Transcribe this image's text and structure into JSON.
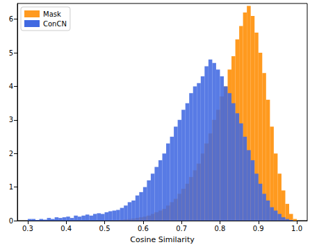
{
  "chart_data": {
    "type": "histogram",
    "xlabel": "Cosine Similarity",
    "xlim": [
      0.273,
      1.027
    ],
    "xticks": [
      0.3,
      0.4,
      0.5,
      0.6,
      0.7,
      0.8,
      0.9,
      {
        "value": 1.0,
        "label": "1.0"
      }
    ],
    "ylim": [
      0,
      6.47
    ],
    "yticks": [
      0,
      1,
      2,
      3,
      4,
      5,
      6
    ],
    "grid": false,
    "legend": "upper left",
    "bins": [
      0.3,
      0.31,
      0.32,
      0.33,
      0.34,
      0.35,
      0.36,
      0.37,
      0.38,
      0.39,
      0.4,
      0.41,
      0.42,
      0.43,
      0.44,
      0.45,
      0.46,
      0.47,
      0.48,
      0.49,
      0.5,
      0.51,
      0.52,
      0.53,
      0.54,
      0.55,
      0.56,
      0.57,
      0.58,
      0.59,
      0.6,
      0.61,
      0.62,
      0.63,
      0.64,
      0.65,
      0.66,
      0.67,
      0.68,
      0.69,
      0.7,
      0.71,
      0.72,
      0.73,
      0.74,
      0.75,
      0.76,
      0.77,
      0.78,
      0.79,
      0.8,
      0.81,
      0.82,
      0.83,
      0.84,
      0.85,
      0.86,
      0.87,
      0.88,
      0.89,
      0.9,
      0.91,
      0.92,
      0.93,
      0.94,
      0.95,
      0.96,
      0.97,
      0.98,
      0.99,
      1.0
    ],
    "series": [
      {
        "name": "Mask",
        "color": "#ff9a1f",
        "values": [
          0,
          0,
          0,
          0,
          0,
          0,
          0,
          0,
          0,
          0,
          0,
          0,
          0,
          0,
          0,
          0,
          0,
          0,
          0,
          0,
          0.01,
          0.01,
          0.02,
          0.02,
          0.03,
          0.04,
          0.05,
          0.06,
          0.08,
          0.1,
          0.12,
          0.15,
          0.2,
          0.25,
          0.3,
          0.35,
          0.45,
          0.55,
          0.65,
          0.8,
          0.95,
          1.1,
          1.3,
          1.5,
          1.7,
          2.0,
          2.3,
          2.6,
          3.0,
          3.3,
          3.7,
          4.0,
          4.5,
          4.9,
          5.4,
          5.8,
          6.2,
          6.4,
          6.1,
          5.6,
          5.0,
          4.4,
          3.6,
          2.8,
          2.0,
          1.4,
          0.9,
          0.5,
          0.2,
          0.05
        ]
      },
      {
        "name": "ConCN",
        "color": "#4169e1",
        "values": [
          0.05,
          0.05,
          0.02,
          0.05,
          0.03,
          0.08,
          0.05,
          0.1,
          0.08,
          0.1,
          0.12,
          0.08,
          0.15,
          0.12,
          0.15,
          0.18,
          0.15,
          0.2,
          0.22,
          0.2,
          0.25,
          0.28,
          0.3,
          0.32,
          0.38,
          0.45,
          0.55,
          0.6,
          0.75,
          0.85,
          1.0,
          1.2,
          1.4,
          1.6,
          1.8,
          2.0,
          2.3,
          2.5,
          2.8,
          3.0,
          3.3,
          3.5,
          3.8,
          4.0,
          4.1,
          4.3,
          4.6,
          4.8,
          4.7,
          4.5,
          4.3,
          4.0,
          3.8,
          3.5,
          3.2,
          2.9,
          2.5,
          2.1,
          1.8,
          1.4,
          1.1,
          0.8,
          0.6,
          0.4,
          0.3,
          0.2,
          0.1,
          0.05,
          0.02,
          0
        ]
      }
    ]
  }
}
